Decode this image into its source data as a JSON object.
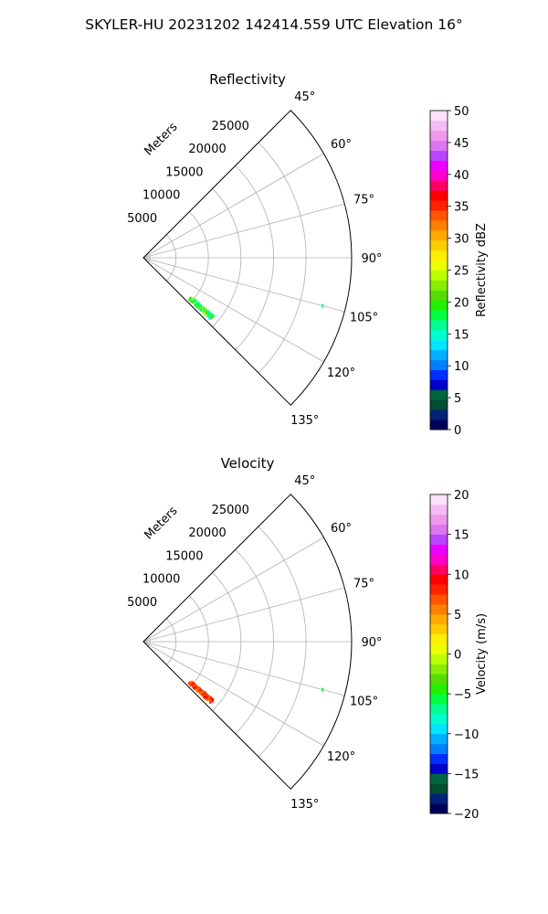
{
  "figure": {
    "suptitle": "SKYLER-HU  20231202  142414.559 UTC Elevation 16°"
  },
  "chart_data": [
    {
      "type": "polar_sector",
      "title": "Reflectivity",
      "radial_axis_label": "Meters",
      "theta_range_deg": [
        45,
        135
      ],
      "theta_ticks": [
        "45°",
        "60°",
        "75°",
        "90°",
        "105°",
        "120°",
        "135°"
      ],
      "r_range_m": [
        0,
        32000
      ],
      "r_ticks": [
        "5000",
        "10000",
        "15000",
        "20000",
        "25000"
      ],
      "grid": true,
      "colorbar": {
        "label": "Reflectivity dBZ",
        "range": [
          0,
          50
        ],
        "ticks": [
          "0",
          "5",
          "10",
          "15",
          "20",
          "25",
          "30",
          "35",
          "40",
          "45",
          "50"
        ],
        "colors": [
          "#00005a",
          "#00237a",
          "#004d33",
          "#00663f",
          "#0000cc",
          "#0030ff",
          "#0080ff",
          "#00b0ff",
          "#00e6ff",
          "#00ffd0",
          "#00ff90",
          "#00ff40",
          "#22f000",
          "#55dd00",
          "#88ee00",
          "#bbff00",
          "#eeff00",
          "#ffee00",
          "#ffcc00",
          "#ffaa00",
          "#ff7f00",
          "#ff5500",
          "#ff2200",
          "#ff0000",
          "#ff0066",
          "#ff00cc",
          "#ee00ff",
          "#bb44ff",
          "#dd77ee",
          "#ee99ee",
          "#f5bbf5",
          "#fce0fc"
        ]
      },
      "echo_cluster": {
        "theta_deg": [
          128.5,
          132.5
        ],
        "r_m": [
          9500,
          14000
        ],
        "main_colors": [
          "#00ffd0",
          "#00ff90",
          "#00ff40",
          "#55dd00",
          "#bbff00"
        ]
      },
      "isolated_echo": {
        "theta_deg": 105,
        "r_m": 28500,
        "color": "#00ff90"
      }
    },
    {
      "type": "polar_sector",
      "title": "Velocity",
      "radial_axis_label": "Meters",
      "theta_range_deg": [
        45,
        135
      ],
      "theta_ticks": [
        "45°",
        "60°",
        "75°",
        "90°",
        "105°",
        "120°",
        "135°"
      ],
      "r_range_m": [
        0,
        32000
      ],
      "r_ticks": [
        "5000",
        "10000",
        "15000",
        "20000",
        "25000"
      ],
      "grid": true,
      "colorbar": {
        "label": "Velocity (m/s)",
        "range": [
          -20,
          20
        ],
        "ticks": [
          "−20",
          "−15",
          "−10",
          "−5",
          "0",
          "5",
          "10",
          "15",
          "20"
        ],
        "colors": [
          "#00005a",
          "#00237a",
          "#004d33",
          "#00663f",
          "#0000cc",
          "#0030ff",
          "#0080ff",
          "#00b0ff",
          "#00e6ff",
          "#00ffd0",
          "#00ff90",
          "#00ff40",
          "#22f000",
          "#55dd00",
          "#88ee00",
          "#bbff00",
          "#eeff00",
          "#ffee00",
          "#ffcc00",
          "#ffaa00",
          "#ff7f00",
          "#ff5500",
          "#ff2200",
          "#ff0000",
          "#ff0066",
          "#ff00cc",
          "#ee00ff",
          "#bb44ff",
          "#dd77ee",
          "#ee99ee",
          "#f5bbf5",
          "#fce0fc"
        ]
      },
      "echo_cluster": {
        "theta_deg": [
          128.5,
          132.5
        ],
        "r_m": [
          9500,
          14000
        ],
        "main_colors": [
          "#ff2200",
          "#ff0000",
          "#ff5500",
          "#ff7f00"
        ]
      },
      "isolated_echo": {
        "theta_deg": 105,
        "r_m": 28500,
        "color": "#00ff40"
      }
    }
  ]
}
